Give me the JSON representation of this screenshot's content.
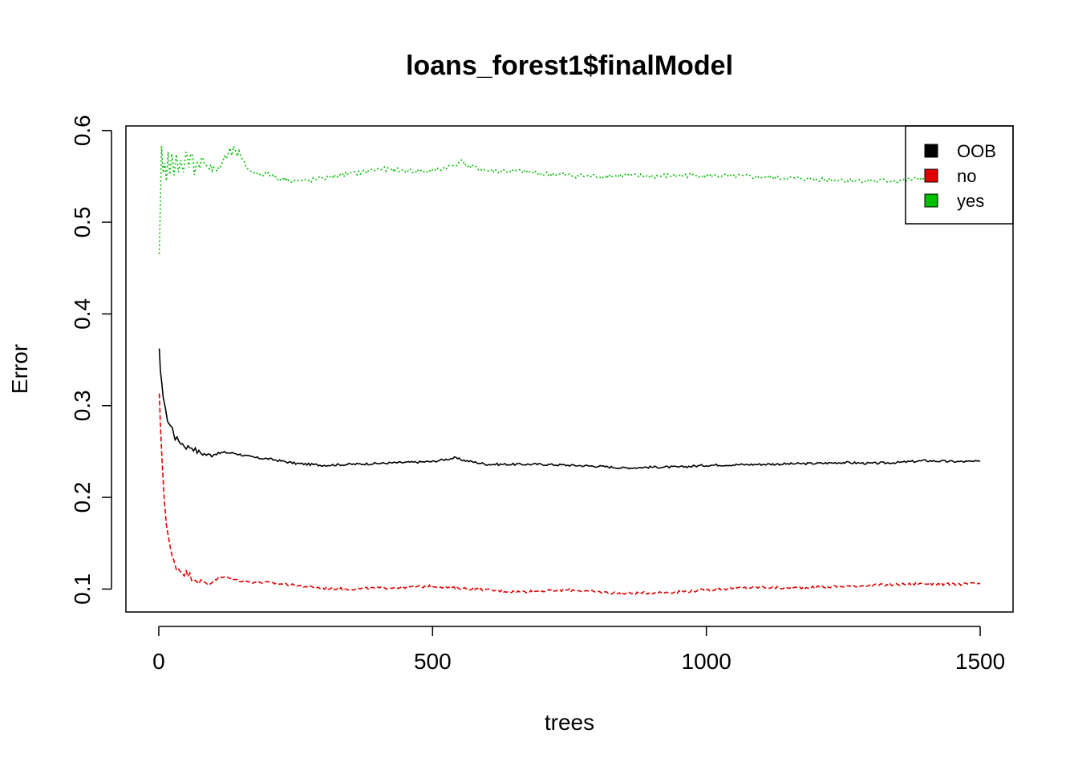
{
  "chart_data": {
    "type": "line",
    "title": "loans_forest1$finalModel",
    "xlabel": "trees",
    "ylabel": "Error",
    "xlim": [
      -60,
      1560
    ],
    "ylim": [
      0.075,
      0.605
    ],
    "x_ticks": [
      0,
      500,
      1000,
      1500
    ],
    "y_ticks": [
      0.1,
      0.2,
      0.3,
      0.4,
      0.5,
      0.6
    ],
    "grid": false,
    "legend_position": "top-right",
    "legend": [
      {
        "label": "OOB",
        "color": "#000000"
      },
      {
        "label": "no",
        "color": "#DF0000"
      },
      {
        "label": "yes",
        "color": "#00BF00"
      }
    ],
    "series": [
      {
        "name": "OOB",
        "color": "#000000",
        "line_style": "solid",
        "x": [
          1,
          3,
          5,
          8,
          12,
          16,
          20,
          25,
          30,
          40,
          50,
          60,
          70,
          80,
          90,
          100,
          120,
          140,
          160,
          180,
          200,
          250,
          300,
          350,
          400,
          450,
          500,
          540,
          560,
          600,
          650,
          700,
          750,
          800,
          850,
          900,
          950,
          1000,
          1100,
          1200,
          1250,
          1300,
          1350,
          1400,
          1450,
          1500
        ],
        "y": [
          0.36,
          0.335,
          0.33,
          0.31,
          0.295,
          0.285,
          0.28,
          0.275,
          0.265,
          0.26,
          0.255,
          0.255,
          0.25,
          0.248,
          0.246,
          0.247,
          0.249,
          0.248,
          0.245,
          0.243,
          0.242,
          0.237,
          0.235,
          0.236,
          0.237,
          0.238,
          0.239,
          0.243,
          0.24,
          0.236,
          0.236,
          0.236,
          0.235,
          0.234,
          0.232,
          0.233,
          0.233,
          0.235,
          0.236,
          0.237,
          0.238,
          0.237,
          0.238,
          0.24,
          0.239,
          0.239
        ]
      },
      {
        "name": "no",
        "color": "#DF0000",
        "line_style": "dashed",
        "x": [
          1,
          3,
          6,
          10,
          14,
          18,
          22,
          27,
          32,
          40,
          50,
          60,
          70,
          80,
          90,
          100,
          120,
          140,
          160,
          200,
          250,
          300,
          350,
          400,
          450,
          500,
          550,
          600,
          650,
          700,
          750,
          800,
          850,
          900,
          950,
          1000,
          1050,
          1100,
          1150,
          1200,
          1250,
          1300,
          1350,
          1400,
          1450,
          1500
        ],
        "y": [
          0.31,
          0.28,
          0.24,
          0.2,
          0.17,
          0.155,
          0.14,
          0.13,
          0.125,
          0.12,
          0.117,
          0.113,
          0.11,
          0.107,
          0.105,
          0.11,
          0.113,
          0.11,
          0.108,
          0.107,
          0.104,
          0.101,
          0.1,
          0.101,
          0.102,
          0.103,
          0.101,
          0.099,
          0.097,
          0.098,
          0.099,
          0.097,
          0.095,
          0.096,
          0.097,
          0.099,
          0.101,
          0.102,
          0.101,
          0.102,
          0.103,
          0.104,
          0.105,
          0.106,
          0.105,
          0.106
        ]
      },
      {
        "name": "yes",
        "color": "#00BF00",
        "line_style": "dotted",
        "x": [
          1,
          3,
          5,
          8,
          11,
          14,
          17,
          20,
          24,
          28,
          32,
          36,
          40,
          45,
          50,
          55,
          60,
          65,
          70,
          75,
          80,
          85,
          90,
          95,
          100,
          110,
          120,
          130,
          140,
          150,
          160,
          170,
          180,
          200,
          220,
          250,
          270,
          300,
          320,
          350,
          380,
          400,
          430,
          460,
          500,
          540,
          550,
          570,
          600,
          650,
          700,
          750,
          800,
          850,
          900,
          950,
          1000,
          1050,
          1100,
          1150,
          1200,
          1250,
          1300,
          1350,
          1400
        ],
        "y": [
          0.46,
          0.52,
          0.58,
          0.55,
          0.57,
          0.54,
          0.58,
          0.55,
          0.57,
          0.55,
          0.58,
          0.56,
          0.57,
          0.55,
          0.575,
          0.56,
          0.58,
          0.555,
          0.57,
          0.555,
          0.575,
          0.565,
          0.56,
          0.56,
          0.555,
          0.56,
          0.568,
          0.575,
          0.578,
          0.57,
          0.56,
          0.555,
          0.553,
          0.552,
          0.548,
          0.545,
          0.545,
          0.548,
          0.55,
          0.553,
          0.555,
          0.558,
          0.557,
          0.556,
          0.556,
          0.562,
          0.567,
          0.56,
          0.556,
          0.556,
          0.553,
          0.551,
          0.55,
          0.551,
          0.55,
          0.551,
          0.551,
          0.55,
          0.549,
          0.548,
          0.547,
          0.546,
          0.545,
          0.545,
          0.548
        ]
      }
    ]
  }
}
